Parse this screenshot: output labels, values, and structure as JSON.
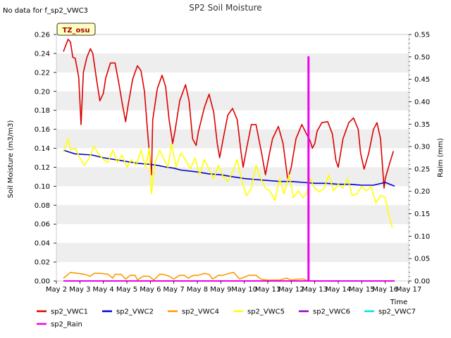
{
  "header": {
    "title": "SP2 Soil Moisture",
    "no_data_note": "No data for f_sp2_VWC3",
    "station_badge": "TZ_osu"
  },
  "chart_data": {
    "type": "line",
    "title": "SP2 Soil Moisture",
    "xlabel": "Time",
    "ylabel": "Soil Moisture (m3/m3)",
    "y2label": "Raim (mm)",
    "xlim": [
      2,
      17
    ],
    "ylim": [
      0,
      0.26
    ],
    "y2lim": [
      0,
      0.55
    ],
    "x_ticks": [
      {
        "value": 2,
        "label": "May 2"
      },
      {
        "value": 3,
        "label": "May 3"
      },
      {
        "value": 4,
        "label": "May 4"
      },
      {
        "value": 5,
        "label": "May 5"
      },
      {
        "value": 6,
        "label": "May 6"
      },
      {
        "value": 7,
        "label": "May 7"
      },
      {
        "value": 8,
        "label": "May 8"
      },
      {
        "value": 9,
        "label": "May 9"
      },
      {
        "value": 10,
        "label": "May 10"
      },
      {
        "value": 11,
        "label": "May 11"
      },
      {
        "value": 12,
        "label": "May 12"
      },
      {
        "value": 13,
        "label": "May 13"
      },
      {
        "value": 14,
        "label": "May 14"
      },
      {
        "value": 15,
        "label": "May 15"
      },
      {
        "value": 16,
        "label": "May 16"
      },
      {
        "value": 17,
        "label": "May 17"
      }
    ],
    "y_ticks": [
      "0.00",
      "0.02",
      "0.04",
      "0.06",
      "0.08",
      "0.10",
      "0.12",
      "0.14",
      "0.16",
      "0.18",
      "0.20",
      "0.22",
      "0.24",
      "0.26"
    ],
    "y2_ticks": [
      "0.00",
      "0.05",
      "0.10",
      "0.15",
      "0.20",
      "0.25",
      "0.30",
      "0.35",
      "0.40",
      "0.45",
      "0.50",
      "0.55"
    ],
    "grid": "alternating horizontal bands",
    "legend_position": "bottom",
    "series": [
      {
        "name": "sp2_VWC1",
        "color": "#dd0000",
        "axis": "left",
        "x": [
          2.3,
          2.5,
          2.6,
          2.7,
          2.8,
          2.95,
          3.05,
          3.15,
          3.3,
          3.45,
          3.55,
          3.7,
          3.85,
          4.0,
          4.1,
          4.3,
          4.5,
          4.65,
          4.8,
          4.95,
          5.05,
          5.25,
          5.45,
          5.6,
          5.75,
          5.9,
          6.0,
          6.05,
          6.1,
          6.3,
          6.5,
          6.65,
          6.8,
          6.95,
          7.05,
          7.25,
          7.5,
          7.65,
          7.8,
          7.95,
          8.05,
          8.3,
          8.5,
          8.7,
          8.85,
          8.95,
          9.1,
          9.3,
          9.5,
          9.7,
          9.85,
          9.95,
          10.1,
          10.3,
          10.5,
          10.75,
          10.9,
          11.05,
          11.2,
          11.45,
          11.65,
          11.85,
          12.0,
          12.2,
          12.45,
          12.65,
          12.8,
          12.9,
          13.0,
          13.1,
          13.3,
          13.55,
          13.75,
          13.9,
          14.0,
          14.2,
          14.45,
          14.65,
          14.85,
          14.95,
          15.1,
          15.3,
          15.5,
          15.65,
          15.8,
          15.95,
          16.0,
          16.2,
          16.35
        ],
        "y": [
          0.242,
          0.255,
          0.252,
          0.236,
          0.235,
          0.215,
          0.165,
          0.22,
          0.236,
          0.245,
          0.24,
          0.214,
          0.19,
          0.198,
          0.214,
          0.23,
          0.23,
          0.21,
          0.188,
          0.168,
          0.185,
          0.213,
          0.227,
          0.222,
          0.2,
          0.152,
          0.125,
          0.112,
          0.17,
          0.203,
          0.217,
          0.205,
          0.17,
          0.145,
          0.158,
          0.19,
          0.207,
          0.19,
          0.15,
          0.143,
          0.158,
          0.183,
          0.197,
          0.178,
          0.145,
          0.13,
          0.15,
          0.175,
          0.182,
          0.17,
          0.138,
          0.12,
          0.14,
          0.165,
          0.165,
          0.133,
          0.112,
          0.132,
          0.15,
          0.163,
          0.145,
          0.107,
          0.12,
          0.15,
          0.165,
          0.155,
          0.148,
          0.14,
          0.145,
          0.158,
          0.167,
          0.168,
          0.155,
          0.127,
          0.12,
          0.15,
          0.167,
          0.172,
          0.16,
          0.135,
          0.118,
          0.135,
          0.16,
          0.167,
          0.15,
          0.098,
          0.108,
          0.125,
          0.137
        ]
      },
      {
        "name": "sp2_VWC2",
        "color": "#0000cc",
        "axis": "left",
        "x": [
          2.3,
          2.8,
          3.5,
          4.0,
          4.5,
          5.0,
          5.5,
          6.0,
          6.3,
          6.7,
          7.0,
          7.3,
          8.0,
          8.5,
          9.0,
          9.5,
          10.0,
          10.5,
          11.0,
          11.5,
          12.0,
          12.5,
          13.0,
          13.5,
          14.0,
          14.5,
          15.0,
          15.5,
          16.0,
          16.4
        ],
        "y": [
          0.138,
          0.134,
          0.133,
          0.13,
          0.128,
          0.126,
          0.124,
          0.123,
          0.122,
          0.12,
          0.119,
          0.117,
          0.115,
          0.113,
          0.112,
          0.11,
          0.108,
          0.107,
          0.106,
          0.105,
          0.105,
          0.104,
          0.103,
          0.103,
          0.102,
          0.102,
          0.101,
          0.101,
          0.104,
          0.1
        ]
      },
      {
        "name": "sp2_VWC4",
        "color": "#ff9900",
        "axis": "left",
        "x": [
          2.3,
          2.6,
          2.9,
          3.2,
          3.45,
          3.6,
          3.9,
          4.2,
          4.4,
          4.5,
          4.75,
          4.95,
          5.15,
          5.35,
          5.45,
          5.7,
          5.95,
          6.15,
          6.4,
          6.55,
          6.8,
          7.0,
          7.25,
          7.45,
          7.6,
          7.85,
          8.05,
          8.3,
          8.5,
          8.65,
          8.9,
          9.1,
          9.35,
          9.55,
          9.8,
          10.0,
          10.2,
          10.5,
          10.7,
          10.95,
          11.2,
          11.5,
          11.8,
          12.0,
          12.3,
          12.55,
          12.7
        ],
        "y": [
          0.003,
          0.009,
          0.008,
          0.007,
          0.005,
          0.008,
          0.008,
          0.007,
          0.003,
          0.007,
          0.007,
          0.002,
          0.006,
          0.006,
          0.001,
          0.005,
          0.005,
          0.001,
          0.007,
          0.007,
          0.005,
          0.002,
          0.006,
          0.006,
          0.003,
          0.006,
          0.006,
          0.008,
          0.007,
          0.002,
          0.006,
          0.006,
          0.008,
          0.009,
          0.002,
          0.004,
          0.006,
          0.006,
          0.002,
          0.001,
          0.001,
          0.001,
          0.003,
          0.001,
          0.002,
          0.002,
          0.0
        ]
      },
      {
        "name": "sp2_VWC5",
        "color": "#ffff00",
        "axis": "left",
        "x": [
          2.3,
          2.5,
          2.6,
          2.8,
          3.0,
          3.2,
          3.4,
          3.6,
          3.8,
          4.0,
          4.2,
          4.4,
          4.6,
          4.8,
          5.0,
          5.2,
          5.4,
          5.6,
          5.8,
          5.95,
          6.05,
          6.2,
          6.4,
          6.55,
          6.75,
          6.9,
          7.1,
          7.3,
          7.5,
          7.7,
          7.9,
          8.1,
          8.3,
          8.5,
          8.7,
          8.9,
          9.1,
          9.3,
          9.5,
          9.7,
          9.9,
          10.1,
          10.3,
          10.5,
          10.7,
          10.9,
          11.1,
          11.3,
          11.5,
          11.7,
          11.9,
          12.1,
          12.3,
          12.5,
          12.65,
          12.8,
          13.0,
          13.2,
          13.4,
          13.6,
          13.8,
          14.0,
          14.2,
          14.4,
          14.6,
          14.8,
          15.0,
          15.2,
          15.4,
          15.6,
          15.8,
          16.0,
          16.15,
          16.3
        ],
        "y": [
          0.136,
          0.15,
          0.138,
          0.14,
          0.13,
          0.122,
          0.13,
          0.142,
          0.134,
          0.128,
          0.125,
          0.138,
          0.125,
          0.133,
          0.12,
          0.128,
          0.122,
          0.138,
          0.12,
          0.14,
          0.092,
          0.125,
          0.138,
          0.13,
          0.12,
          0.145,
          0.12,
          0.135,
          0.128,
          0.118,
          0.13,
          0.112,
          0.128,
          0.118,
          0.108,
          0.122,
          0.11,
          0.105,
          0.115,
          0.128,
          0.105,
          0.09,
          0.098,
          0.122,
          0.108,
          0.098,
          0.095,
          0.085,
          0.108,
          0.092,
          0.112,
          0.088,
          0.095,
          0.088,
          0.092,
          0.108,
          0.098,
          0.094,
          0.098,
          0.112,
          0.095,
          0.102,
          0.098,
          0.108,
          0.09,
          0.092,
          0.1,
          0.095,
          0.1,
          0.082,
          0.09,
          0.088,
          0.07,
          0.056
        ]
      },
      {
        "name": "sp2_VWC6",
        "color": "#9900cc",
        "axis": "left",
        "x": [],
        "y": []
      },
      {
        "name": "sp2_VWC7",
        "color": "#00e0e0",
        "axis": "left",
        "x": [
          2.3,
          16.4
        ],
        "y": [
          0.0,
          0.0
        ]
      },
      {
        "name": "sp2_Rain",
        "color": "#ee00ee",
        "axis": "right",
        "x": [
          2.3,
          12.72,
          12.72,
          12.75,
          12.75,
          16.4
        ],
        "y": [
          0.0,
          0.0,
          0.5,
          0.5,
          0.0,
          0.0
        ]
      }
    ]
  },
  "legend": {
    "items": [
      {
        "label": "sp2_VWC1",
        "color": "#dd0000"
      },
      {
        "label": "sp2_VWC2",
        "color": "#0000cc"
      },
      {
        "label": "sp2_VWC4",
        "color": "#ff9900"
      },
      {
        "label": "sp2_VWC5",
        "color": "#ffff00"
      },
      {
        "label": "sp2_VWC6",
        "color": "#9900cc"
      },
      {
        "label": "sp2_VWC7",
        "color": "#00e0e0"
      },
      {
        "label": "sp2_Rain",
        "color": "#ee00ee"
      }
    ]
  }
}
